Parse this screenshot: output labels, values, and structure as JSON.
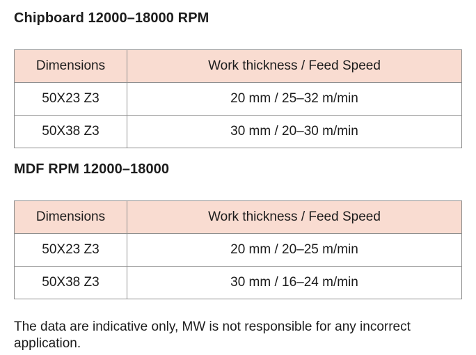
{
  "sections": [
    {
      "title": "Chipboard 12000–18000 RPM",
      "table": {
        "headers": [
          "Dimensions",
          "Work thickness / Feed Speed"
        ],
        "rows": [
          [
            "50X23 Z3",
            "20 mm / 25–32 m/min"
          ],
          [
            "50X38 Z3",
            "30 mm / 20–30 m/min"
          ]
        ]
      }
    },
    {
      "title": "MDF RPM 12000–18000",
      "table": {
        "headers": [
          "Dimensions",
          "Work thickness / Feed Speed"
        ],
        "rows": [
          [
            "50X23 Z3",
            "20 mm / 20–25 m/min"
          ],
          [
            "50X38 Z3",
            "30 mm / 16–24 m/min"
          ]
        ]
      }
    }
  ],
  "footer": "The data are indicative only, MW is not responsible for any incorrect application.",
  "colors": {
    "header_bg": "#f9dcd1",
    "border": "#8f8f8f",
    "text": "#1c1c1c"
  }
}
